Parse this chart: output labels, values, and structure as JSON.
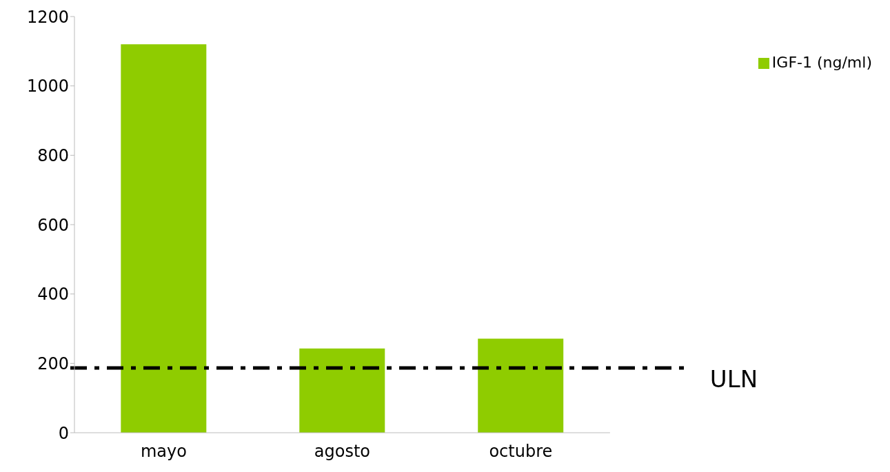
{
  "chart_data": {
    "type": "bar",
    "categories": [
      "mayo",
      "agosto",
      "octubre"
    ],
    "series": [
      {
        "name": "IGF-1  (ng/ml)",
        "color": "#8fcc00",
        "values": [
          1120,
          243,
          271
        ]
      }
    ],
    "ylim": [
      0,
      1200
    ],
    "yticks": [
      0,
      200,
      400,
      600,
      800,
      1000,
      1200
    ],
    "grid": false,
    "legend": "top right",
    "ref_lines": [
      {
        "axis": "y",
        "value": 187,
        "label": "ULN",
        "color": "#000000",
        "line_style": "dashdot"
      }
    ]
  }
}
